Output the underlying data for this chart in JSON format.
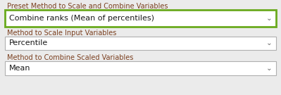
{
  "bg_color": "#ebebeb",
  "label_color": "#7b4020",
  "dropdown_text_color": "#1a1a1a",
  "dropdown_arrow_color": "#666666",
  "border_color_normal": "#b0b0b0",
  "border_color_active": "#6aaa1e",
  "dropdown_bg": "#ffffff",
  "row1_label": "Preset Method to Scale and Combine Variables",
  "row1_value": "Combine ranks (Mean of percentiles)",
  "row1_active": true,
  "row2_label": "Method to Scale Input Variables",
  "row2_value": "Percentile",
  "row2_active": false,
  "row3_label": "Method to Combine Scaled Variables",
  "row3_value": "Mean",
  "row3_active": false,
  "label_fontsize": 7.0,
  "value_fontsize": 8.0,
  "arrow_fontsize": 7.5,
  "fig_w": 3.99,
  "fig_h": 1.35,
  "dpi": 100
}
